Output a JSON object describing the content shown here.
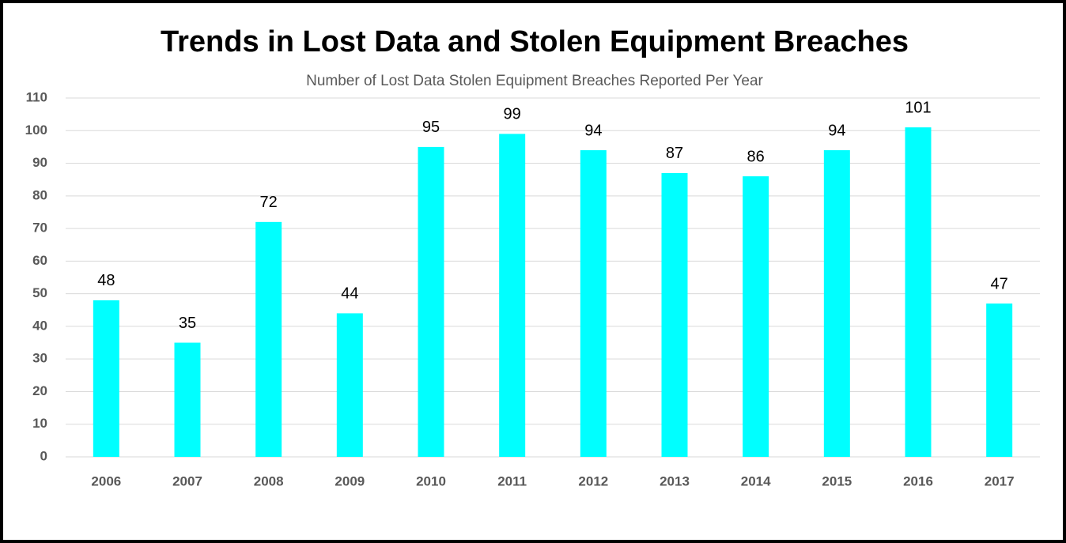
{
  "chart_data": {
    "type": "bar",
    "title": "Trends in Lost Data and Stolen Equipment Breaches",
    "subtitle": "Number of Lost Data Stolen Equipment Breaches Reported Per Year",
    "categories": [
      "2006",
      "2007",
      "2008",
      "2009",
      "2010",
      "2011",
      "2012",
      "2013",
      "2014",
      "2015",
      "2016",
      "2017"
    ],
    "values": [
      48,
      35,
      72,
      44,
      95,
      99,
      94,
      87,
      86,
      94,
      101,
      47
    ],
    "color": "#00FFFF",
    "ylim": [
      0,
      110
    ],
    "yticks": [
      0,
      10,
      20,
      30,
      40,
      50,
      60,
      70,
      80,
      90,
      100,
      110
    ],
    "grid": true
  }
}
